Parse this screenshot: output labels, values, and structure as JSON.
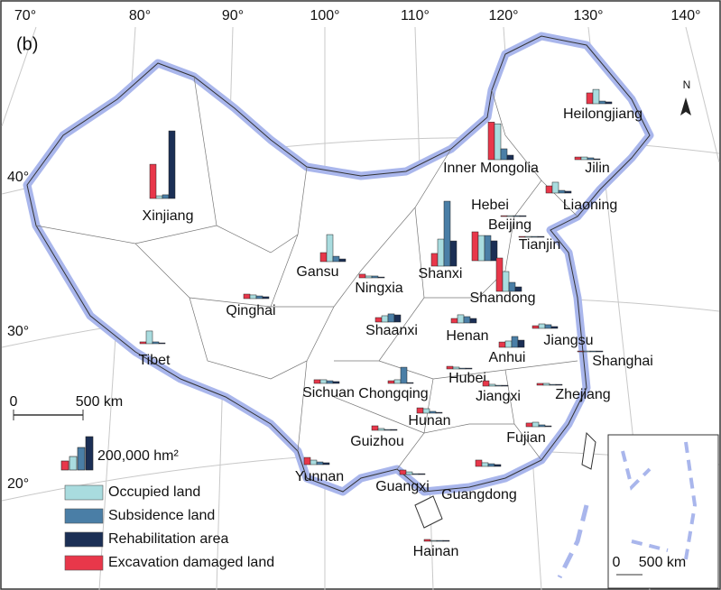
{
  "panel_label": "(b)",
  "longitude_labels": [
    "70°",
    "80°",
    "90°",
    "100°",
    "110°",
    "120°",
    "130°",
    "140°"
  ],
  "latitude_labels": [
    "40°",
    "30°",
    "20°"
  ],
  "north_label": "N",
  "scale_bar": {
    "start": "0",
    "end": "500 km"
  },
  "inset_scale_bar": {
    "start": "0",
    "end": "500 km"
  },
  "legend": {
    "scale": {
      "value": 200000,
      "label": "200,000 hm²"
    },
    "items": [
      {
        "name": "Occupied land",
        "color": "#a9dcdf"
      },
      {
        "name": "Subsidence land",
        "color": "#4a7ea6"
      },
      {
        "name": "Rehabilitation area",
        "color": "#1b2f55"
      },
      {
        "name": "Excavation damaged land",
        "color": "#e8374a"
      }
    ]
  },
  "provinces": [
    {
      "name": "Xinjiang",
      "values": [
        16000,
        22000,
        405000,
        205000
      ]
    },
    {
      "name": "Inner Mongolia",
      "values": [
        215000,
        65000,
        27000,
        225000
      ]
    },
    {
      "name": "Heilongjiang",
      "values": [
        86000,
        16000,
        11000,
        65000
      ]
    },
    {
      "name": "Jilin",
      "values": [
        16000,
        11000,
        5000,
        16000
      ]
    },
    {
      "name": "Liaoning",
      "values": [
        65000,
        16000,
        11000,
        43000
      ]
    },
    {
      "name": "Hebei",
      "values": [
        151000,
        151000,
        119000,
        173000
      ]
    },
    {
      "name": "Beijing",
      "values": [
        5000,
        5000,
        5000,
        5000
      ]
    },
    {
      "name": "Tianjin",
      "values": [
        5000,
        5000,
        5000,
        5000
      ]
    },
    {
      "name": "Shanxi",
      "values": [
        162000,
        389000,
        151000,
        76000
      ]
    },
    {
      "name": "Shandong",
      "values": [
        119000,
        54000,
        27000,
        200000
      ]
    },
    {
      "name": "Gansu",
      "values": [
        162000,
        32000,
        16000,
        54000
      ]
    },
    {
      "name": "Ningxia",
      "values": [
        11000,
        11000,
        5000,
        22000
      ]
    },
    {
      "name": "Qinghai",
      "values": [
        22000,
        16000,
        11000,
        27000
      ]
    },
    {
      "name": "Tibet",
      "values": [
        76000,
        11000,
        5000,
        11000
      ]
    },
    {
      "name": "Shaanxi",
      "values": [
        38000,
        49000,
        43000,
        27000
      ]
    },
    {
      "name": "Henan",
      "values": [
        49000,
        38000,
        27000,
        27000
      ]
    },
    {
      "name": "Jiangsu",
      "values": [
        27000,
        22000,
        11000,
        16000
      ]
    },
    {
      "name": "Anhui",
      "values": [
        38000,
        65000,
        43000,
        32000
      ]
    },
    {
      "name": "Shanghai",
      "values": [
        5000,
        5000,
        5000,
        5000
      ]
    },
    {
      "name": "Hubei",
      "values": [
        11000,
        5000,
        5000,
        16000
      ]
    },
    {
      "name": "Sichuan",
      "values": [
        22000,
        16000,
        11000,
        22000
      ]
    },
    {
      "name": "Chongqing",
      "values": [
        22000,
        97000,
        5000,
        16000
      ]
    },
    {
      "name": "Jiangxi",
      "values": [
        11000,
        5000,
        5000,
        32000
      ]
    },
    {
      "name": "Zhejiang",
      "values": [
        11000,
        5000,
        5000,
        11000
      ]
    },
    {
      "name": "Hunan",
      "values": [
        27000,
        11000,
        5000,
        32000
      ]
    },
    {
      "name": "Guizhou",
      "values": [
        11000,
        5000,
        5000,
        27000
      ]
    },
    {
      "name": "Fujian",
      "values": [
        27000,
        11000,
        5000,
        22000
      ]
    },
    {
      "name": "Yunnan",
      "values": [
        27000,
        16000,
        11000,
        43000
      ]
    },
    {
      "name": "Guangxi",
      "values": [
        16000,
        5000,
        5000,
        27000
      ]
    },
    {
      "name": "Guangdong",
      "values": [
        22000,
        16000,
        11000,
        38000
      ]
    },
    {
      "name": "Hainan",
      "values": [
        5000,
        5000,
        5000,
        11000
      ]
    }
  ]
}
